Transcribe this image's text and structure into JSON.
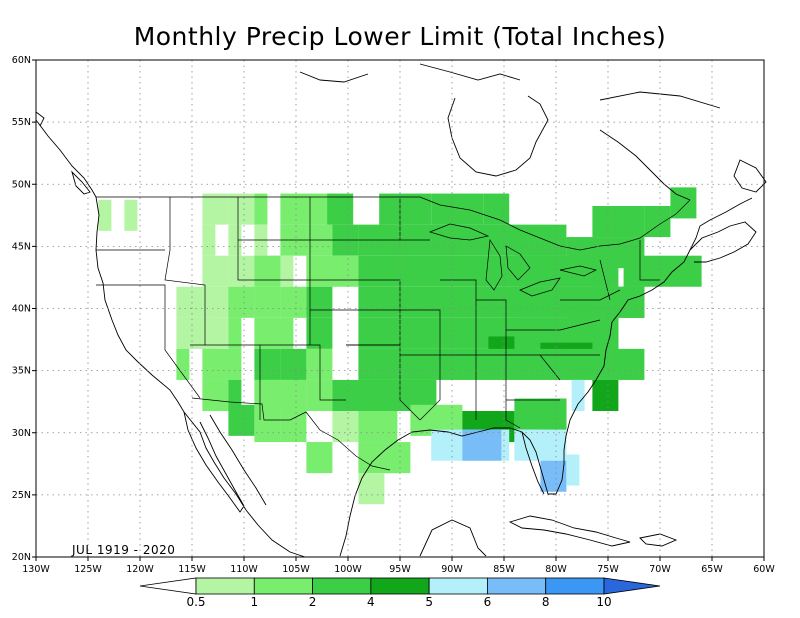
{
  "title": "Monthly Precip Lower Limit (Total Inches)",
  "period_label": "JUL 1919 - 2020",
  "lat_labels": [
    "20N",
    "25N",
    "30N",
    "35N",
    "40N",
    "45N",
    "50N",
    "55N",
    "60N"
  ],
  "lon_labels": [
    "130W",
    "125W",
    "120W",
    "115W",
    "110W",
    "105W",
    "100W",
    "95W",
    "90W",
    "85W",
    "80W",
    "75W",
    "70W",
    "65W",
    "60W"
  ],
  "extent": {
    "lon_min": -130,
    "lon_max": -60,
    "lat_min": 20,
    "lat_max": 60
  },
  "legend": {
    "thresholds": [
      "0.5",
      "1",
      "2",
      "4",
      "5",
      "6",
      "8",
      "10"
    ],
    "colors": [
      "#ffffff",
      "#b4f5a4",
      "#78ed6e",
      "#3cce46",
      "#12a71b",
      "#b4f0fa",
      "#78bcf8",
      "#3c96f4",
      "#2a66dc"
    ]
  },
  "chart_data": {
    "type": "heatmap",
    "cell_size_deg": 2.5,
    "cell_units": "class index (1: 0.5-1, 2: 1-2, 3: 2-4, 4: 4-5, 5: 5-6, 6: 6-8)",
    "cells": [
      [
        -124,
        47.5,
        1,
        1
      ],
      [
        -121.5,
        47.5,
        1,
        1
      ],
      [
        -114,
        48,
        2,
        1
      ],
      [
        -111.5,
        48,
        2,
        1
      ],
      [
        -109,
        48,
        1,
        2
      ],
      [
        -106.5,
        48,
        4,
        2
      ],
      [
        -102,
        48,
        2,
        3
      ],
      [
        -97,
        48,
        4,
        3
      ],
      [
        -92,
        48,
        4,
        3
      ],
      [
        -87,
        48,
        2,
        3
      ],
      [
        -114,
        45.5,
        1,
        1
      ],
      [
        -111.5,
        45.5,
        1,
        1
      ],
      [
        -109,
        45.5,
        1,
        1
      ],
      [
        -106.5,
        45.5,
        2,
        2
      ],
      [
        -104,
        45.5,
        2,
        2
      ],
      [
        -101.5,
        45.5,
        2,
        3
      ],
      [
        -99,
        45.5,
        16,
        3
      ],
      [
        -76.5,
        47,
        4,
        3
      ],
      [
        -71.5,
        47,
        2,
        3
      ],
      [
        -69,
        48.5,
        2,
        3
      ],
      [
        -114,
        43,
        2,
        1
      ],
      [
        -111.5,
        43,
        5,
        1
      ],
      [
        -109,
        43,
        2,
        2
      ],
      [
        -104,
        43,
        4,
        2
      ],
      [
        -99,
        43,
        20,
        3
      ],
      [
        -73.5,
        43,
        6,
        3
      ],
      [
        -79,
        44.5,
        6,
        3
      ],
      [
        -84,
        43,
        4,
        3
      ],
      [
        -116.5,
        40.5,
        2,
        1
      ],
      [
        -114,
        40.5,
        3,
        1
      ],
      [
        -111.5,
        40.5,
        2,
        2
      ],
      [
        -109,
        40.5,
        2,
        2
      ],
      [
        -106.5,
        40.5,
        2,
        2
      ],
      [
        -104,
        40.5,
        2,
        3
      ],
      [
        -99,
        40.5,
        20,
        3
      ],
      [
        -79,
        40.5,
        6,
        3
      ],
      [
        -76.5,
        40.5,
        4,
        3
      ],
      [
        -74,
        40.5,
        2,
        3
      ],
      [
        -116.5,
        38,
        3,
        1
      ],
      [
        -114,
        38,
        2,
        1
      ],
      [
        -111.5,
        38,
        1,
        2
      ],
      [
        -109,
        38,
        3,
        2
      ],
      [
        -104,
        38,
        2,
        3
      ],
      [
        -99,
        38,
        20,
        3
      ],
      [
        -84,
        38,
        2,
        3
      ],
      [
        -81.5,
        38,
        4,
        3
      ],
      [
        -76.5,
        38,
        2,
        3
      ],
      [
        -86.5,
        36.5,
        2,
        4
      ],
      [
        -81.5,
        36,
        2,
        4
      ],
      [
        -79,
        36,
        2,
        4
      ],
      [
        -116.5,
        35.5,
        1,
        2
      ],
      [
        -114,
        35.5,
        3,
        2
      ],
      [
        -109,
        35.5,
        2,
        3
      ],
      [
        -106.5,
        35.5,
        2,
        3
      ],
      [
        -104,
        35.5,
        2,
        2
      ],
      [
        -99,
        35.5,
        22,
        3
      ],
      [
        -76.5,
        33,
        2,
        4
      ],
      [
        -114,
        33,
        2,
        2
      ],
      [
        -111.5,
        33,
        1,
        3
      ],
      [
        -109,
        33,
        4,
        2
      ],
      [
        -104,
        33,
        2,
        2
      ],
      [
        -101.5,
        33,
        8,
        3
      ],
      [
        -91.5,
        30.5,
        2,
        4
      ],
      [
        -89,
        30.5,
        4,
        4
      ],
      [
        -81.5,
        31.5,
        2,
        4
      ],
      [
        -84,
        31.5,
        4,
        3
      ],
      [
        -111.5,
        31,
        2,
        3
      ],
      [
        -109,
        30.5,
        2,
        2
      ],
      [
        -106.5,
        30.5,
        2,
        2
      ],
      [
        -101.5,
        30.5,
        2,
        1
      ],
      [
        -99,
        30.5,
        3,
        2
      ],
      [
        -94,
        31,
        4,
        2
      ],
      [
        -104,
        28,
        2,
        2
      ],
      [
        -99,
        28,
        3,
        2
      ],
      [
        -96.5,
        28,
        2,
        2
      ],
      [
        -99,
        25.5,
        2,
        1
      ],
      [
        -92,
        29,
        6,
        5
      ],
      [
        -84,
        29,
        4,
        5
      ],
      [
        -81.5,
        26.5,
        2,
        6
      ],
      [
        -79,
        27,
        1,
        5
      ],
      [
        -89,
        29,
        3,
        6
      ],
      [
        -78.5,
        33,
        1,
        5
      ]
    ]
  }
}
